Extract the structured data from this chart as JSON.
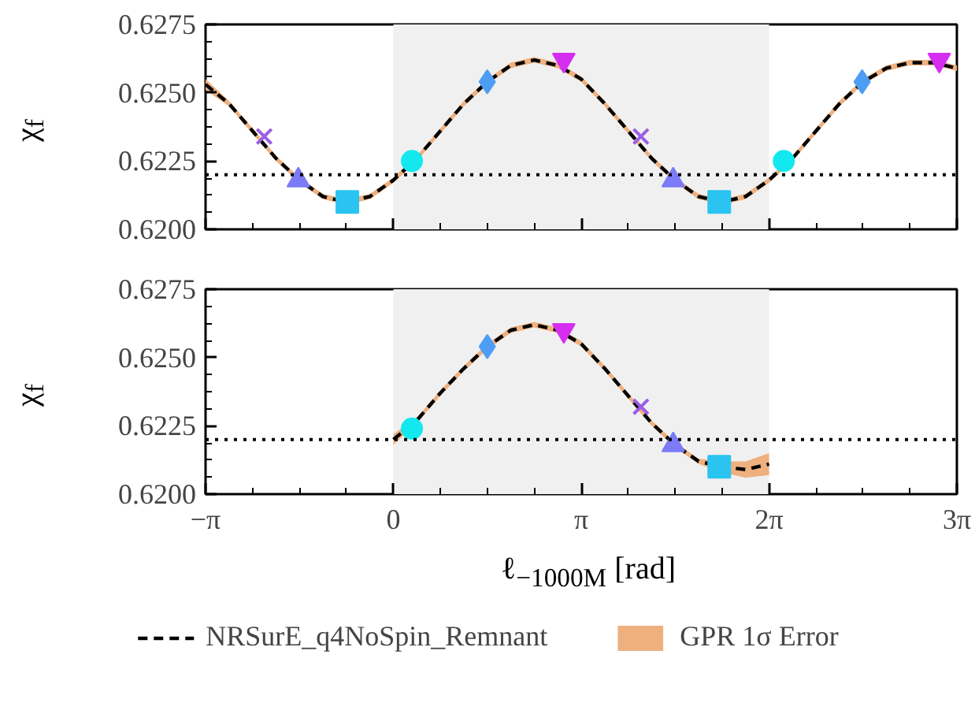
{
  "chart_data": [
    {
      "type": "line",
      "ylabel": "χ$_{f}$",
      "xlim": [
        -3.1416,
        9.4248
      ],
      "ylim": [
        0.62,
        0.6275
      ],
      "tick_labels": "y",
      "grid": false,
      "xticks": [
        {
          "value": -3.1416,
          "label": null
        },
        {
          "value": 0,
          "label": null
        },
        {
          "value": 3.1416,
          "label": null
        },
        {
          "value": 6.2832,
          "label": null
        },
        {
          "value": 9.4248,
          "label": null
        }
      ],
      "yticks": [
        {
          "value": 0.62,
          "label": "0.6200"
        },
        {
          "value": 0.6225,
          "label": "0.6225"
        },
        {
          "value": 0.625,
          "label": "0.6250"
        },
        {
          "value": 0.6275,
          "label": "0.6275"
        }
      ],
      "bands": [
        {
          "axis": "x",
          "from": 0,
          "to": 6.2832,
          "color": "#f0f0f0"
        }
      ],
      "ref_lines": [
        {
          "axis": "y",
          "value": 0.622,
          "color": "#000000",
          "line_style": "dotted"
        }
      ],
      "series": [
        {
          "type": "area",
          "color": "#eeb07f"
        },
        {
          "color": "#000000",
          "line_style": "dashed",
          "x": [
            -3.1416,
            -2.7489,
            -2.3562,
            -1.9635,
            -1.5708,
            -1.1781,
            -0.7854,
            -0.3927,
            0,
            0.3927,
            0.7854,
            1.1781,
            1.5708,
            1.9635,
            2.3562,
            2.7489,
            3.1416,
            3.5343,
            3.927,
            4.3197,
            4.7124,
            5.1051,
            5.4978,
            5.8905,
            6.2832,
            6.6759,
            7.0686,
            7.4613,
            7.854,
            8.2467,
            8.6394,
            9.0321,
            9.4248
          ],
          "values": [
            0.6253,
            0.6246,
            0.6236,
            0.6226,
            0.6218,
            0.6212,
            0.621,
            0.6212,
            0.6218,
            0.6226,
            0.6236,
            0.6246,
            0.6254,
            0.626,
            0.6262,
            0.626,
            0.6255,
            0.6246,
            0.6236,
            0.6226,
            0.6218,
            0.6212,
            0.621,
            0.6212,
            0.6218,
            0.6226,
            0.6236,
            0.6246,
            0.6254,
            0.6259,
            0.6261,
            0.6261,
            0.6259
          ],
          "lower": [
            0.6251,
            0.6245,
            0.6235,
            0.6225,
            0.6217,
            0.6211,
            0.6209,
            0.6211,
            0.6217,
            0.6225,
            0.6235,
            0.6245,
            0.6253,
            0.6259,
            0.6261,
            0.6259,
            0.6254,
            0.6245,
            0.6235,
            0.6225,
            0.6217,
            0.6211,
            0.6209,
            0.6211,
            0.6217,
            0.6225,
            0.6235,
            0.6245,
            0.6253,
            0.6258,
            0.626,
            0.626,
            0.6258
          ],
          "upper": [
            0.6255,
            0.6247,
            0.6237,
            0.6227,
            0.6219,
            0.6213,
            0.6211,
            0.6213,
            0.6219,
            0.6227,
            0.6237,
            0.6247,
            0.6255,
            0.6261,
            0.6263,
            0.6261,
            0.6256,
            0.6247,
            0.6237,
            0.6227,
            0.6219,
            0.6213,
            0.6211,
            0.6213,
            0.6219,
            0.6227,
            0.6237,
            0.6247,
            0.6255,
            0.626,
            0.6262,
            0.6262,
            0.626
          ]
        },
        {
          "type": "scatter",
          "marker": "cross",
          "color": "#9b5de5",
          "x": [
            -2.16,
            4.14
          ],
          "values": [
            0.6234,
            0.6234
          ]
        },
        {
          "type": "scatter",
          "marker": "triangle",
          "color": "#7b7bf7",
          "x": [
            -1.59,
            4.68
          ],
          "values": [
            0.6218,
            0.6218
          ]
        },
        {
          "type": "scatter",
          "marker": "square",
          "color": "#2bc4f0",
          "x": [
            -0.77,
            5.45
          ],
          "values": [
            0.621,
            0.621
          ]
        },
        {
          "type": "scatter",
          "marker": "circle",
          "color": "#14e8ef",
          "x": [
            0.31,
            6.53
          ],
          "values": [
            0.6225,
            0.6225
          ]
        },
        {
          "type": "scatter",
          "marker": "diamond",
          "color": "#4e9df5",
          "x": [
            1.57,
            7.84
          ],
          "values": [
            0.6254,
            0.6254
          ]
        },
        {
          "type": "scatter",
          "marker": "triangle_down",
          "color": "#d62ef0",
          "x": [
            2.85,
            9.13
          ],
          "values": [
            0.6262,
            0.6262
          ]
        }
      ]
    },
    {
      "type": "line",
      "ylabel": "χ$_{f}$",
      "xlabel": "ℓ$_{−1000M}$ [rad]",
      "xlim": [
        -3.1416,
        9.4248
      ],
      "ylim": [
        0.62,
        0.6275
      ],
      "grid": false,
      "legend": "bottom",
      "xticks": [
        {
          "value": -3.1416,
          "label": "−π"
        },
        {
          "value": 0,
          "label": "0"
        },
        {
          "value": 3.1416,
          "label": "π"
        },
        {
          "value": 6.2832,
          "label": "2π"
        },
        {
          "value": 9.4248,
          "label": "3π"
        }
      ],
      "yticks": [
        {
          "value": 0.62,
          "label": "0.6200"
        },
        {
          "value": 0.6225,
          "label": "0.6225"
        },
        {
          "value": 0.625,
          "label": "0.6250"
        },
        {
          "value": 0.6275,
          "label": "0.6275"
        }
      ],
      "bands": [
        {
          "axis": "x",
          "from": 0,
          "to": 6.2832,
          "color": "#f0f0f0"
        }
      ],
      "ref_lines": [
        {
          "axis": "y",
          "value": 0.622,
          "color": "#000000",
          "line_style": "dotted"
        }
      ],
      "series": [
        {
          "name": "NRSurE_q4NoSpin_Remnant",
          "color": "#000000",
          "line_style": "dashed",
          "x": [
            0,
            0.3927,
            0.7854,
            1.1781,
            1.5708,
            1.9635,
            2.3562,
            2.7489,
            3.1416,
            3.5343,
            3.927,
            4.3197,
            4.7124,
            5.1051,
            5.4978,
            5.8905,
            6.2832
          ],
          "values": [
            0.622,
            0.6227,
            0.6237,
            0.6246,
            0.6254,
            0.626,
            0.6262,
            0.626,
            0.6255,
            0.6246,
            0.6236,
            0.6226,
            0.6218,
            0.6212,
            0.621,
            0.6209,
            0.6211
          ],
          "lower": [
            0.6218,
            0.6226,
            0.6236,
            0.6245,
            0.6253,
            0.6259,
            0.6261,
            0.6259,
            0.6254,
            0.6245,
            0.6235,
            0.6225,
            0.6217,
            0.6211,
            0.6208,
            0.6206,
            0.6207
          ],
          "upper": [
            0.6222,
            0.6228,
            0.6238,
            0.6247,
            0.6255,
            0.6261,
            0.6263,
            0.6261,
            0.6256,
            0.6247,
            0.6237,
            0.6227,
            0.6219,
            0.6213,
            0.6212,
            0.6212,
            0.6215
          ]
        },
        {
          "type": "area",
          "name": "GPR 1σ Error",
          "color": "#eeb07f"
        },
        {
          "type": "scatter",
          "marker": "cross",
          "color": "#9b5de5",
          "x": [
            4.14
          ],
          "values": [
            0.6232
          ]
        },
        {
          "type": "scatter",
          "marker": "triangle",
          "color": "#7b7bf7",
          "x": [
            4.68
          ],
          "values": [
            0.6218
          ]
        },
        {
          "type": "scatter",
          "marker": "square",
          "color": "#2bc4f0",
          "x": [
            5.45
          ],
          "values": [
            0.621
          ]
        },
        {
          "type": "scatter",
          "marker": "circle",
          "color": "#14e8ef",
          "x": [
            0.31
          ],
          "values": [
            0.6224
          ]
        },
        {
          "type": "scatter",
          "marker": "diamond",
          "color": "#4e9df5",
          "x": [
            1.57
          ],
          "values": [
            0.6254
          ]
        },
        {
          "type": "scatter",
          "marker": "triangle_down",
          "color": "#d62ef0",
          "x": [
            2.85
          ],
          "values": [
            0.626
          ]
        }
      ]
    }
  ]
}
